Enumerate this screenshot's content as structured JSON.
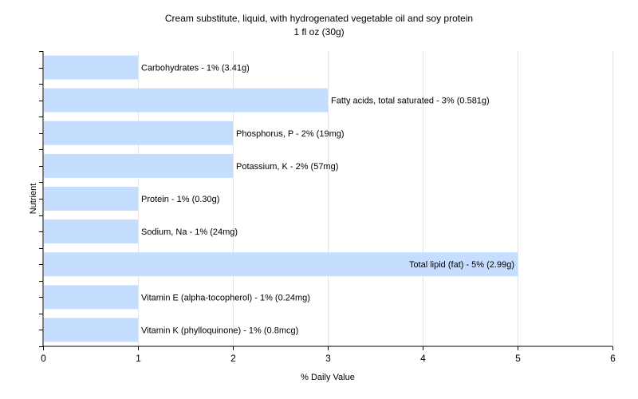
{
  "chart_data": {
    "type": "bar",
    "orientation": "horizontal",
    "title": "Cream substitute, liquid, with hydrogenated vegetable oil and soy protein",
    "subtitle": "1 fl oz (30g)",
    "xlabel": "% Daily Value",
    "ylabel": "Nutrient",
    "xlim": [
      0,
      6
    ],
    "xticks": [
      "0",
      "1",
      "2",
      "3",
      "4",
      "5",
      "6"
    ],
    "grid": true,
    "bar_color": "#c5deff",
    "categories": [
      "Carbohydrates",
      "Fatty acids, total saturated",
      "Phosphorus, P",
      "Potassium, K",
      "Protein",
      "Sodium, Na",
      "Total lipid (fat)",
      "Vitamin E (alpha-tocopherol)",
      "Vitamin K (phylloquinone)"
    ],
    "values": [
      1,
      3,
      2,
      2,
      1,
      1,
      5,
      1,
      1
    ],
    "labels": [
      "Carbohydrates - 1% (3.41g)",
      "Fatty acids, total saturated - 3% (0.581g)",
      "Phosphorus, P - 2% (19mg)",
      "Potassium, K - 2% (57mg)",
      "Protein - 1% (0.30g)",
      "Sodium, Na - 1% (24mg)",
      "Total lipid (fat) - 5% (2.99g)",
      "Vitamin E (alpha-tocopherol) - 1% (0.24mg)",
      "Vitamin K (phylloquinone) - 1% (0.8mcg)"
    ]
  }
}
